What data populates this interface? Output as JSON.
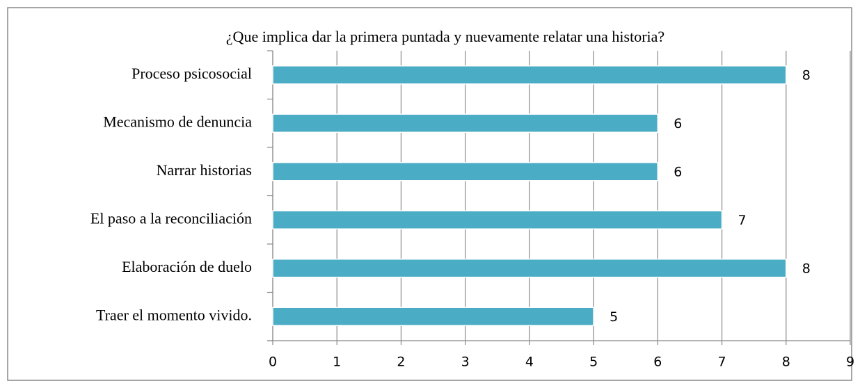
{
  "chart_data": {
    "type": "bar",
    "orientation": "horizontal",
    "title": "¿Que implica  dar la primera  puntada y nuevamente relatar una historia?",
    "categories": [
      "Proceso psicosocial",
      "Mecanismo de denuncia",
      "Narrar historias",
      "El paso a la reconciliación",
      "Elaboración de duelo",
      "Traer el momento vivido."
    ],
    "values": [
      8,
      6,
      6,
      7,
      8,
      5
    ],
    "color": "#4bacc6",
    "xlim": [
      0,
      9
    ],
    "xticks": [
      0,
      1,
      2,
      3,
      4,
      5,
      6,
      7,
      8,
      9
    ],
    "grid": true
  }
}
